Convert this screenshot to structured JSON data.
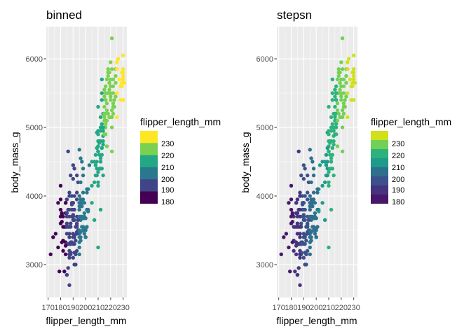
{
  "chart_data": [
    {
      "type": "scatter",
      "title": "binned",
      "xlabel": "flipper_length_mm",
      "ylabel": "body_mass_g",
      "xlim": [
        168.5,
        233
      ],
      "ylim": [
        2520,
        6470
      ],
      "x_ticks": [
        170,
        180,
        190,
        200,
        210,
        220,
        230
      ],
      "x_tick_labels": [
        "170",
        "180",
        "190",
        "200",
        "210",
        "220",
        "230"
      ],
      "y_ticks": [
        3000,
        4000,
        5000,
        6000
      ],
      "y_tick_labels": [
        "3000",
        "4000",
        "5000",
        "6000"
      ],
      "legend": {
        "title": "flipper_length_mm",
        "labels": [
          "230",
          "220",
          "210",
          "200",
          "190",
          "180"
        ],
        "colors": [
          "#fde725",
          "#7ad151",
          "#22a884",
          "#2a788e",
          "#414487",
          "#440154"
        ]
      }
    },
    {
      "type": "scatter",
      "title": "stepsn",
      "xlabel": "flipper_length_mm",
      "ylabel": "body_mass_g",
      "xlim": [
        168.5,
        233
      ],
      "ylim": [
        2520,
        6470
      ],
      "x_ticks": [
        170,
        180,
        190,
        200,
        210,
        220,
        230
      ],
      "x_tick_labels": [
        "170",
        "180",
        "190",
        "200",
        "210",
        "220",
        "230"
      ],
      "y_ticks": [
        3000,
        4000,
        5000,
        6000
      ],
      "y_tick_labels": [
        "3000",
        "4000",
        "5000",
        "6000"
      ],
      "legend": {
        "title": "flipper_length_mm",
        "labels": [
          "230",
          "220",
          "210",
          "200",
          "190",
          "180"
        ],
        "colors": [
          "#d0e11c",
          "#73d056",
          "#2db27d",
          "#1e9b8a",
          "#2e6f8e",
          "#3b518b",
          "#46337f",
          "#481769"
        ]
      }
    }
  ],
  "points": [
    [
      181,
      3750
    ],
    [
      186,
      3800
    ],
    [
      195,
      3250
    ],
    [
      193,
      3450
    ],
    [
      190,
      3650
    ],
    [
      181,
      3625
    ],
    [
      195,
      4675
    ],
    [
      193,
      3475
    ],
    [
      190,
      4250
    ],
    [
      186,
      3300
    ],
    [
      180,
      3700
    ],
    [
      182,
      3200
    ],
    [
      191,
      3800
    ],
    [
      198,
      4400
    ],
    [
      185,
      3700
    ],
    [
      195,
      3450
    ],
    [
      197,
      4500
    ],
    [
      184,
      3325
    ],
    [
      194,
      4200
    ],
    [
      174,
      3400
    ],
    [
      180,
      3600
    ],
    [
      189,
      3800
    ],
    [
      185,
      3950
    ],
    [
      180,
      3800
    ],
    [
      187,
      3800
    ],
    [
      183,
      3550
    ],
    [
      187,
      3200
    ],
    [
      172,
      3150
    ],
    [
      180,
      3950
    ],
    [
      178,
      3250
    ],
    [
      178,
      3900
    ],
    [
      188,
      3300
    ],
    [
      184,
      3900
    ],
    [
      195,
      3325
    ],
    [
      180,
      4150
    ],
    [
      196,
      3950
    ],
    [
      182,
      3550
    ],
    [
      191,
      3300
    ],
    [
      186,
      4650
    ],
    [
      188,
      3150
    ],
    [
      190,
      3900
    ],
    [
      200,
      3400
    ],
    [
      191,
      3650
    ],
    [
      193,
      4300
    ],
    [
      187,
      3700
    ],
    [
      195,
      3800
    ],
    [
      189,
      3700
    ],
    [
      184,
      3550
    ],
    [
      198,
      3500
    ],
    [
      196,
      3650
    ],
    [
      185,
      3300
    ],
    [
      199,
      3675
    ],
    [
      188,
      3550
    ],
    [
      192,
      3150
    ],
    [
      187,
      3400
    ],
    [
      190,
      3800
    ],
    [
      184,
      3750
    ],
    [
      185,
      3450
    ],
    [
      190,
      3400
    ],
    [
      182,
      3700
    ],
    [
      179,
      2900
    ],
    [
      191,
      3175
    ],
    [
      185,
      3750
    ],
    [
      176,
      3450
    ],
    [
      188,
      3325
    ],
    [
      190,
      3900
    ],
    [
      191,
      3425
    ],
    [
      188,
      3175
    ],
    [
      189,
      3900
    ],
    [
      185,
      3600
    ],
    [
      186,
      3550
    ],
    [
      187,
      3300
    ],
    [
      191,
      4400
    ],
    [
      185,
      3550
    ],
    [
      193,
      3950
    ],
    [
      181,
      3725
    ],
    [
      188,
      3300
    ],
    [
      184,
      3275
    ],
    [
      195,
      3900
    ],
    [
      189,
      4000
    ],
    [
      196,
      3900
    ],
    [
      187,
      3550
    ],
    [
      193,
      4050
    ],
    [
      182,
      3350
    ],
    [
      185,
      3950
    ],
    [
      187,
      3100
    ],
    [
      183,
      2900
    ],
    [
      190,
      3450
    ],
    [
      184,
      3900
    ],
    [
      181,
      3325
    ],
    [
      188,
      4300
    ],
    [
      190,
      3100
    ],
    [
      193,
      3200
    ],
    [
      185,
      2850
    ],
    [
      190,
      4450
    ],
    [
      194,
      3500
    ],
    [
      195,
      3150
    ],
    [
      191,
      4000
    ],
    [
      184,
      3150
    ],
    [
      195,
      3400
    ],
    [
      199,
      3450
    ],
    [
      187,
      4000
    ],
    [
      198,
      3675
    ],
    [
      189,
      3325
    ],
    [
      201,
      4050
    ],
    [
      187,
      3150
    ],
    [
      190,
      3725
    ],
    [
      191,
      3000
    ],
    [
      186,
      2950
    ],
    [
      191,
      3400
    ],
    [
      192,
      3350
    ],
    [
      185,
      2850
    ],
    [
      195,
      3500
    ],
    [
      192,
      3000
    ],
    [
      198,
      3550
    ],
    [
      188,
      3600
    ],
    [
      195,
      4000
    ],
    [
      196,
      3700
    ],
    [
      187,
      3450
    ],
    [
      190,
      3450
    ],
    [
      197,
      3900
    ],
    [
      202,
      3800
    ],
    [
      198,
      4300
    ],
    [
      195,
      3850
    ],
    [
      193,
      3575
    ],
    [
      203,
      4450
    ],
    [
      199,
      3700
    ],
    [
      190,
      3700
    ],
    [
      201,
      3800
    ],
    [
      196,
      4550
    ],
    [
      201,
      3550
    ],
    [
      197,
      3700
    ],
    [
      198,
      4050
    ],
    [
      193,
      3450
    ],
    [
      197,
      3850
    ],
    [
      194,
      3650
    ],
    [
      189,
      3875
    ],
    [
      195,
      3800
    ],
    [
      187,
      4050
    ],
    [
      199,
      3900
    ],
    [
      200,
      3500
    ],
    [
      197,
      3950
    ],
    [
      202,
      4100
    ],
    [
      196,
      3475
    ],
    [
      192,
      3550
    ],
    [
      196,
      3400
    ],
    [
      205,
      4150
    ],
    [
      193,
      3600
    ],
    [
      196,
      4200
    ],
    [
      200,
      3675
    ],
    [
      210,
      3250
    ],
    [
      199,
      3750
    ],
    [
      210,
      4150
    ],
    [
      200,
      3400
    ],
    [
      195,
      3900
    ],
    [
      190,
      3300
    ],
    [
      193,
      3700
    ],
    [
      212,
      3800
    ],
    [
      201,
      4100
    ],
    [
      205,
      3900
    ],
    [
      187,
      2700
    ],
    [
      207,
      3650
    ],
    [
      205,
      4500
    ],
    [
      200,
      3525
    ],
    [
      197,
      3550
    ],
    [
      193,
      3550
    ],
    [
      198,
      3950
    ],
    [
      196,
      3350
    ],
    [
      202,
      3775
    ],
    [
      195,
      3700
    ],
    [
      220,
      5600
    ],
    [
      207,
      4500
    ],
    [
      210,
      4800
    ],
    [
      216,
      5050
    ],
    [
      215,
      5000
    ],
    [
      208,
      4600
    ],
    [
      215,
      5100
    ],
    [
      213,
      4700
    ],
    [
      210,
      4725
    ],
    [
      217,
      5700
    ],
    [
      220,
      5950
    ],
    [
      216,
      5400
    ],
    [
      219,
      5650
    ],
    [
      224,
      5850
    ],
    [
      222,
      5300
    ],
    [
      226,
      6000
    ],
    [
      218,
      5800
    ],
    [
      223,
      5400
    ],
    [
      214,
      4800
    ],
    [
      214,
      5200
    ],
    [
      212,
      4800
    ],
    [
      216,
      5200
    ],
    [
      218,
      5850
    ],
    [
      211,
      4800
    ],
    [
      210,
      4650
    ],
    [
      217,
      5250
    ],
    [
      221,
      6300
    ],
    [
      209,
      4400
    ],
    [
      222,
      5600
    ],
    [
      218,
      5800
    ],
    [
      215,
      5550
    ],
    [
      213,
      5700
    ],
    [
      215,
      5550
    ],
    [
      230,
      5700
    ],
    [
      229,
      5800
    ],
    [
      220,
      5700
    ],
    [
      216,
      5400
    ],
    [
      212,
      4400
    ],
    [
      219,
      5550
    ],
    [
      228,
      5400
    ],
    [
      219,
      5650
    ],
    [
      210,
      4350
    ],
    [
      215,
      5300
    ],
    [
      230,
      5850
    ],
    [
      214,
      4875
    ],
    [
      222,
      5500
    ],
    [
      215,
      4900
    ],
    [
      224,
      5450
    ],
    [
      216,
      5600
    ],
    [
      213,
      4700
    ],
    [
      216,
      5000
    ],
    [
      217,
      4725
    ],
    [
      210,
      4650
    ],
    [
      221,
      5000
    ],
    [
      209,
      4925
    ],
    [
      222,
      5350
    ],
    [
      218,
      5500
    ],
    [
      215,
      5450
    ],
    [
      213,
      5050
    ],
    [
      212,
      4950
    ],
    [
      230,
      5400
    ],
    [
      210,
      5300
    ],
    [
      220,
      5450
    ],
    [
      213,
      5500
    ],
    [
      225,
      5850
    ],
    [
      217,
      5500
    ],
    [
      222,
      5700
    ],
    [
      214,
      5000
    ],
    [
      211,
      4400
    ],
    [
      224,
      5650
    ],
    [
      230,
      5750
    ],
    [
      208,
      4450
    ],
    [
      212,
      5150
    ],
    [
      211,
      4600
    ],
    [
      219,
      5150
    ],
    [
      213,
      4600
    ],
    [
      209,
      4500
    ],
    [
      222,
      5300
    ],
    [
      213,
      4400
    ],
    [
      221,
      5250
    ],
    [
      230,
      6050
    ],
    [
      211,
      4775
    ],
    [
      223,
      5300
    ],
    [
      215,
      5150
    ],
    [
      218,
      5500
    ],
    [
      214,
      4750
    ],
    [
      218,
      5200
    ],
    [
      220,
      5150
    ],
    [
      210,
      4950
    ],
    [
      216,
      5100
    ],
    [
      229,
      5650
    ],
    [
      208,
      4450
    ],
    [
      220,
      5500
    ],
    [
      212,
      4550
    ],
    [
      210,
      4650
    ],
    [
      225,
      5950
    ],
    [
      215,
      5200
    ],
    [
      222,
      5200
    ],
    [
      220,
      5400
    ],
    [
      228,
      5600
    ],
    [
      214,
      4950
    ],
    [
      222,
      5350
    ],
    [
      210,
      4200
    ],
    [
      216,
      4900
    ],
    [
      214,
      4300
    ],
    [
      229,
      5600
    ],
    [
      218,
      5750
    ],
    [
      224,
      5750
    ],
    [
      210,
      4900
    ],
    [
      221,
      4650
    ],
    [
      225,
      5500
    ],
    [
      212,
      5000
    ],
    [
      219,
      5800
    ],
    [
      230,
      5800
    ],
    [
      215,
      5200
    ],
    [
      208,
      4300
    ],
    [
      212,
      4500
    ],
    [
      217,
      5350
    ],
    [
      213,
      5400
    ],
    [
      221,
      5850
    ],
    [
      217,
      5100
    ],
    [
      216,
      5500
    ],
    [
      207,
      4200
    ],
    [
      209,
      4300
    ],
    [
      221,
      5150
    ],
    [
      223,
      5300
    ],
    [
      231,
      5650
    ],
    [
      227,
      5700
    ],
    [
      225,
      5150
    ],
    [
      209,
      4700
    ]
  ]
}
